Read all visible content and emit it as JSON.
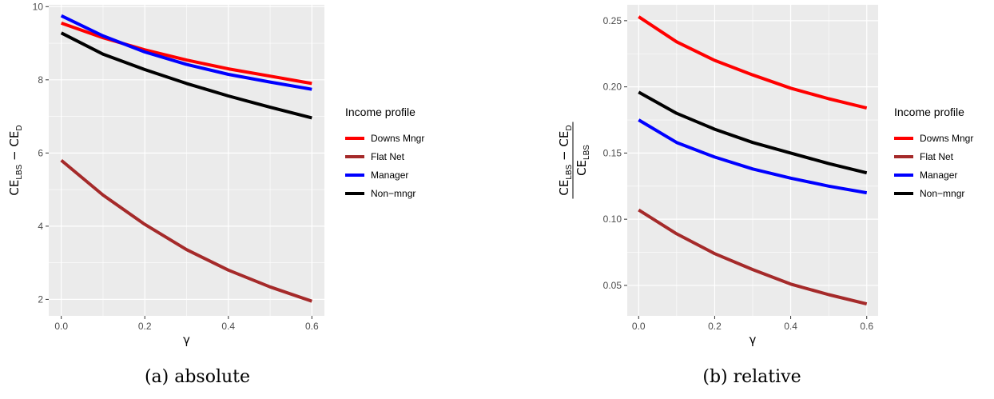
{
  "chart_data": [
    {
      "type": "line",
      "caption": "(a) absolute",
      "xlabel": "γ",
      "ylabel": {
        "main1": "CE",
        "sub1": "LBS",
        "op": " − ",
        "main2": "CE",
        "sub2": "D"
      },
      "xlim": [
        -0.03,
        0.63
      ],
      "ylim": [
        1.55,
        10.05
      ],
      "xticks": [
        0,
        0.2,
        0.4,
        0.6
      ],
      "xtick_labels": [
        "0.0",
        "0.2",
        "0.4",
        "0.6"
      ],
      "yticks": [
        2,
        4,
        6,
        8,
        10
      ],
      "ytick_labels": [
        "2",
        "4",
        "6",
        "8",
        "10"
      ],
      "minor_yticks": [
        3,
        5,
        7,
        9
      ],
      "minor_xticks": [
        0.1,
        0.3,
        0.5
      ],
      "grid": true,
      "legend_position": "right",
      "legend_title": "Income profile",
      "x": [
        0,
        0.1,
        0.2,
        0.3,
        0.4,
        0.5,
        0.6
      ],
      "series": [
        {
          "name": "Downs Mngr",
          "color": "#ff0000",
          "values": [
            9.55,
            9.15,
            8.82,
            8.54,
            8.3,
            8.1,
            7.9
          ]
        },
        {
          "name": "Flat Net",
          "color": "#a52a2a",
          "values": [
            5.8,
            4.85,
            4.05,
            3.36,
            2.8,
            2.34,
            1.95
          ]
        },
        {
          "name": "Manager",
          "color": "#0000ff",
          "values": [
            9.75,
            9.2,
            8.76,
            8.42,
            8.15,
            7.94,
            7.74
          ]
        },
        {
          "name": "Non−mngr",
          "color": "#000000",
          "values": [
            9.28,
            8.7,
            8.28,
            7.9,
            7.56,
            7.25,
            6.96
          ]
        }
      ]
    },
    {
      "type": "line",
      "caption": "(b) relative",
      "xlabel": "γ",
      "ylabel": {
        "main1": "CE",
        "sub1": "LBS",
        "op": " − ",
        "main2": "CE",
        "sub2": "D",
        "den_main": "CE",
        "den_sub": "LBS"
      },
      "xlim": [
        -0.03,
        0.63
      ],
      "ylim": [
        0.027,
        0.262
      ],
      "xticks": [
        0,
        0.2,
        0.4,
        0.6
      ],
      "xtick_labels": [
        "0.0",
        "0.2",
        "0.4",
        "0.6"
      ],
      "yticks": [
        0.05,
        0.1,
        0.15,
        0.2,
        0.25
      ],
      "ytick_labels": [
        "0.05",
        "0.10",
        "0.15",
        "0.20",
        "0.25"
      ],
      "minor_yticks": [
        0.075,
        0.125,
        0.175,
        0.225
      ],
      "minor_xticks": [
        0.1,
        0.3,
        0.5
      ],
      "grid": true,
      "legend_position": "right",
      "legend_title": "Income profile",
      "x": [
        0,
        0.1,
        0.2,
        0.3,
        0.4,
        0.5,
        0.6
      ],
      "series": [
        {
          "name": "Downs Mngr",
          "color": "#ff0000",
          "values": [
            0.253,
            0.234,
            0.22,
            0.209,
            0.199,
            0.191,
            0.184
          ]
        },
        {
          "name": "Flat Net",
          "color": "#a52a2a",
          "values": [
            0.107,
            0.089,
            0.074,
            0.062,
            0.051,
            0.043,
            0.036
          ]
        },
        {
          "name": "Manager",
          "color": "#0000ff",
          "values": [
            0.175,
            0.158,
            0.147,
            0.138,
            0.131,
            0.125,
            0.12
          ]
        },
        {
          "name": "Non−mngr",
          "color": "#000000",
          "values": [
            0.196,
            0.18,
            0.168,
            0.158,
            0.15,
            0.142,
            0.135
          ]
        }
      ]
    }
  ]
}
